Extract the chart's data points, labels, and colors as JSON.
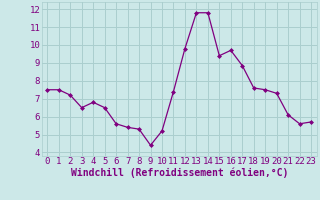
{
  "x": [
    0,
    1,
    2,
    3,
    4,
    5,
    6,
    7,
    8,
    9,
    10,
    11,
    12,
    13,
    14,
    15,
    16,
    17,
    18,
    19,
    20,
    21,
    22,
    23
  ],
  "y": [
    7.5,
    7.5,
    7.2,
    6.5,
    6.8,
    6.5,
    5.6,
    5.4,
    5.3,
    4.4,
    5.2,
    7.4,
    9.8,
    11.8,
    11.8,
    9.4,
    9.7,
    8.85,
    7.6,
    7.5,
    7.3,
    6.1,
    5.6,
    5.7
  ],
  "line_color": "#800080",
  "marker": "D",
  "marker_size": 2,
  "bg_color": "#cce8e8",
  "grid_color": "#aacece",
  "xlabel": "Windchill (Refroidissement éolien,°C)",
  "ylabel_ticks": [
    4,
    5,
    6,
    7,
    8,
    9,
    10,
    11,
    12
  ],
  "ylim": [
    3.8,
    12.4
  ],
  "xlim": [
    -0.5,
    23.5
  ],
  "xticks": [
    0,
    1,
    2,
    3,
    4,
    5,
    6,
    7,
    8,
    9,
    10,
    11,
    12,
    13,
    14,
    15,
    16,
    17,
    18,
    19,
    20,
    21,
    22,
    23
  ],
  "font_color": "#800080",
  "fontsize_tick": 6.5,
  "fontsize_label": 7.0
}
